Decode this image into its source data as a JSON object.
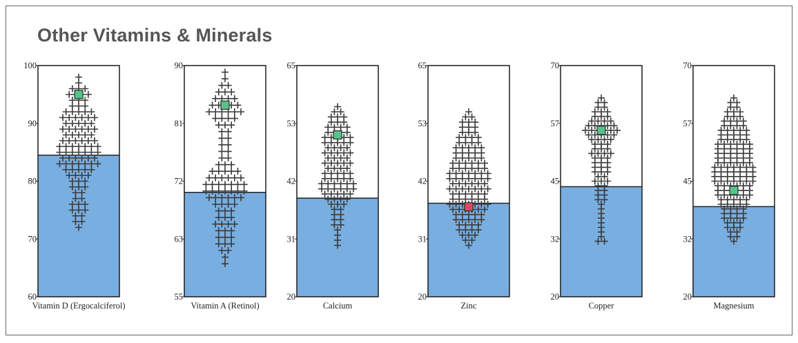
{
  "title": "Other Vitamins & Minerals",
  "colors": {
    "fill": "#79aee0",
    "marker": "#3a3a3a",
    "highlight_green": "#56c48a",
    "highlight_red": "#e0485c",
    "frame": "#1a1a1a"
  },
  "chart_data": [
    {
      "type": "scatter",
      "label": "Vitamin D (Ergocalciferol)",
      "ylim": [
        60,
        100
      ],
      "yticks": [
        "100",
        "90",
        "80",
        "70",
        "60"
      ],
      "fill_level": 84.5,
      "highlight": {
        "value": 95,
        "color": "green"
      },
      "distribution": [
        [
          98,
          1
        ],
        [
          97,
          1
        ],
        [
          96,
          3
        ],
        [
          95,
          4
        ],
        [
          94,
          3
        ],
        [
          93,
          3
        ],
        [
          92,
          5
        ],
        [
          91,
          6
        ],
        [
          90,
          5
        ],
        [
          89,
          6
        ],
        [
          88,
          5
        ],
        [
          87,
          6
        ],
        [
          86,
          7
        ],
        [
          85,
          7
        ],
        [
          84,
          6
        ],
        [
          83,
          7
        ],
        [
          82,
          5
        ],
        [
          81,
          4
        ],
        [
          80,
          3
        ],
        [
          79,
          3
        ],
        [
          78,
          2
        ],
        [
          77,
          2
        ],
        [
          76,
          3
        ],
        [
          75,
          3
        ],
        [
          74,
          2
        ],
        [
          73,
          2
        ],
        [
          72,
          1
        ]
      ]
    },
    {
      "type": "scatter",
      "label": "Vitamin A (Retinol)",
      "ylim": [
        55,
        90
      ],
      "yticks": [
        "90",
        "81",
        "72",
        "63",
        "55"
      ],
      "fill_level": 70.8,
      "highlight": {
        "value": 84,
        "color": "green"
      },
      "distribution": [
        [
          89,
          1
        ],
        [
          88,
          1
        ],
        [
          87,
          2
        ],
        [
          86,
          3
        ],
        [
          85,
          4
        ],
        [
          84,
          5
        ],
        [
          83,
          6
        ],
        [
          82,
          4
        ],
        [
          81,
          3
        ],
        [
          80,
          2
        ],
        [
          79,
          2
        ],
        [
          78,
          2
        ],
        [
          77,
          2
        ],
        [
          76,
          2
        ],
        [
          75,
          3
        ],
        [
          74,
          5
        ],
        [
          73,
          6
        ],
        [
          72,
          7
        ],
        [
          71,
          7
        ],
        [
          70,
          6
        ],
        [
          69,
          4
        ],
        [
          68,
          3
        ],
        [
          67,
          3
        ],
        [
          66,
          4
        ],
        [
          65,
          3
        ],
        [
          64,
          3
        ],
        [
          63,
          3
        ],
        [
          62,
          2
        ],
        [
          61,
          1
        ],
        [
          60,
          1
        ]
      ]
    },
    {
      "type": "scatter",
      "label": "Calcium",
      "ylim": [
        20,
        65
      ],
      "yticks": [
        "65",
        "53",
        "42",
        "31",
        "20"
      ],
      "fill_level": 39.2,
      "highlight": {
        "value": 51.5,
        "color": "green"
      },
      "distribution": [
        [
          57,
          1
        ],
        [
          56,
          2
        ],
        [
          55,
          3
        ],
        [
          54,
          3
        ],
        [
          53,
          4
        ],
        [
          52,
          4
        ],
        [
          51,
          5
        ],
        [
          50,
          5
        ],
        [
          49,
          4
        ],
        [
          48,
          5
        ],
        [
          47,
          4
        ],
        [
          46,
          5
        ],
        [
          45,
          4
        ],
        [
          44,
          5
        ],
        [
          43,
          5
        ],
        [
          42,
          6
        ],
        [
          41,
          6
        ],
        [
          40,
          5
        ],
        [
          39,
          4
        ],
        [
          38,
          3
        ],
        [
          37,
          2
        ],
        [
          36,
          2
        ],
        [
          35,
          2
        ],
        [
          34,
          2
        ],
        [
          33,
          1
        ],
        [
          32,
          1
        ],
        [
          31,
          1
        ],
        [
          30,
          1
        ]
      ]
    },
    {
      "type": "scatter",
      "label": "Zinc",
      "ylim": [
        20,
        65
      ],
      "yticks": [
        "65",
        "53",
        "42",
        "31",
        "20"
      ],
      "fill_level": 38.2,
      "highlight": {
        "value": 37.5,
        "color": "red"
      },
      "distribution": [
        [
          56,
          1
        ],
        [
          55,
          2
        ],
        [
          54,
          3
        ],
        [
          53,
          3
        ],
        [
          52,
          3
        ],
        [
          51,
          4
        ],
        [
          50,
          4
        ],
        [
          49,
          5
        ],
        [
          48,
          5
        ],
        [
          47,
          5
        ],
        [
          46,
          6
        ],
        [
          45,
          6
        ],
        [
          44,
          7
        ],
        [
          43,
          7
        ],
        [
          42,
          6
        ],
        [
          41,
          7
        ],
        [
          40,
          6
        ],
        [
          39,
          6
        ],
        [
          38,
          7
        ],
        [
          37,
          6
        ],
        [
          36,
          5
        ],
        [
          35,
          5
        ],
        [
          34,
          4
        ],
        [
          33,
          4
        ],
        [
          32,
          3
        ],
        [
          31,
          2
        ],
        [
          30,
          1
        ]
      ]
    },
    {
      "type": "scatter",
      "label": "Copper",
      "ylim": [
        20,
        70
      ],
      "yticks": [
        "70",
        "57",
        "45",
        "32",
        "20"
      ],
      "fill_level": 43.8,
      "highlight": {
        "value": 56,
        "color": "green"
      },
      "distribution": [
        [
          63,
          1
        ],
        [
          62,
          2
        ],
        [
          61,
          2
        ],
        [
          60,
          3
        ],
        [
          59,
          3
        ],
        [
          58,
          4
        ],
        [
          57,
          5
        ],
        [
          56,
          6
        ],
        [
          55,
          5
        ],
        [
          54,
          4
        ],
        [
          53,
          3
        ],
        [
          52,
          3
        ],
        [
          51,
          4
        ],
        [
          50,
          3
        ],
        [
          49,
          3
        ],
        [
          48,
          3
        ],
        [
          47,
          3
        ],
        [
          46,
          2
        ],
        [
          45,
          3
        ],
        [
          44,
          2
        ],
        [
          43,
          2
        ],
        [
          42,
          2
        ],
        [
          41,
          2
        ],
        [
          40,
          1
        ],
        [
          39,
          1
        ],
        [
          38,
          1
        ],
        [
          37,
          1
        ],
        [
          36,
          1
        ],
        [
          35,
          1
        ],
        [
          34,
          1
        ],
        [
          33,
          1
        ],
        [
          32,
          2
        ]
      ]
    },
    {
      "type": "scatter",
      "label": "Magnesium",
      "ylim": [
        20,
        70
      ],
      "yticks": [
        "70",
        "57",
        "45",
        "32",
        "20"
      ],
      "fill_level": 39.5,
      "highlight": {
        "value": 43,
        "color": "green"
      },
      "distribution": [
        [
          63,
          1
        ],
        [
          62,
          2
        ],
        [
          61,
          2
        ],
        [
          60,
          3
        ],
        [
          59,
          3
        ],
        [
          58,
          4
        ],
        [
          57,
          4
        ],
        [
          56,
          5
        ],
        [
          55,
          5
        ],
        [
          54,
          5
        ],
        [
          53,
          6
        ],
        [
          52,
          6
        ],
        [
          51,
          6
        ],
        [
          50,
          6
        ],
        [
          49,
          6
        ],
        [
          48,
          7
        ],
        [
          47,
          7
        ],
        [
          46,
          7
        ],
        [
          45,
          7
        ],
        [
          44,
          6
        ],
        [
          43,
          6
        ],
        [
          42,
          6
        ],
        [
          41,
          5
        ],
        [
          40,
          5
        ],
        [
          39,
          4
        ],
        [
          38,
          4
        ],
        [
          37,
          4
        ],
        [
          36,
          3
        ],
        [
          35,
          3
        ],
        [
          34,
          2
        ],
        [
          33,
          2
        ],
        [
          32,
          1
        ]
      ]
    }
  ]
}
